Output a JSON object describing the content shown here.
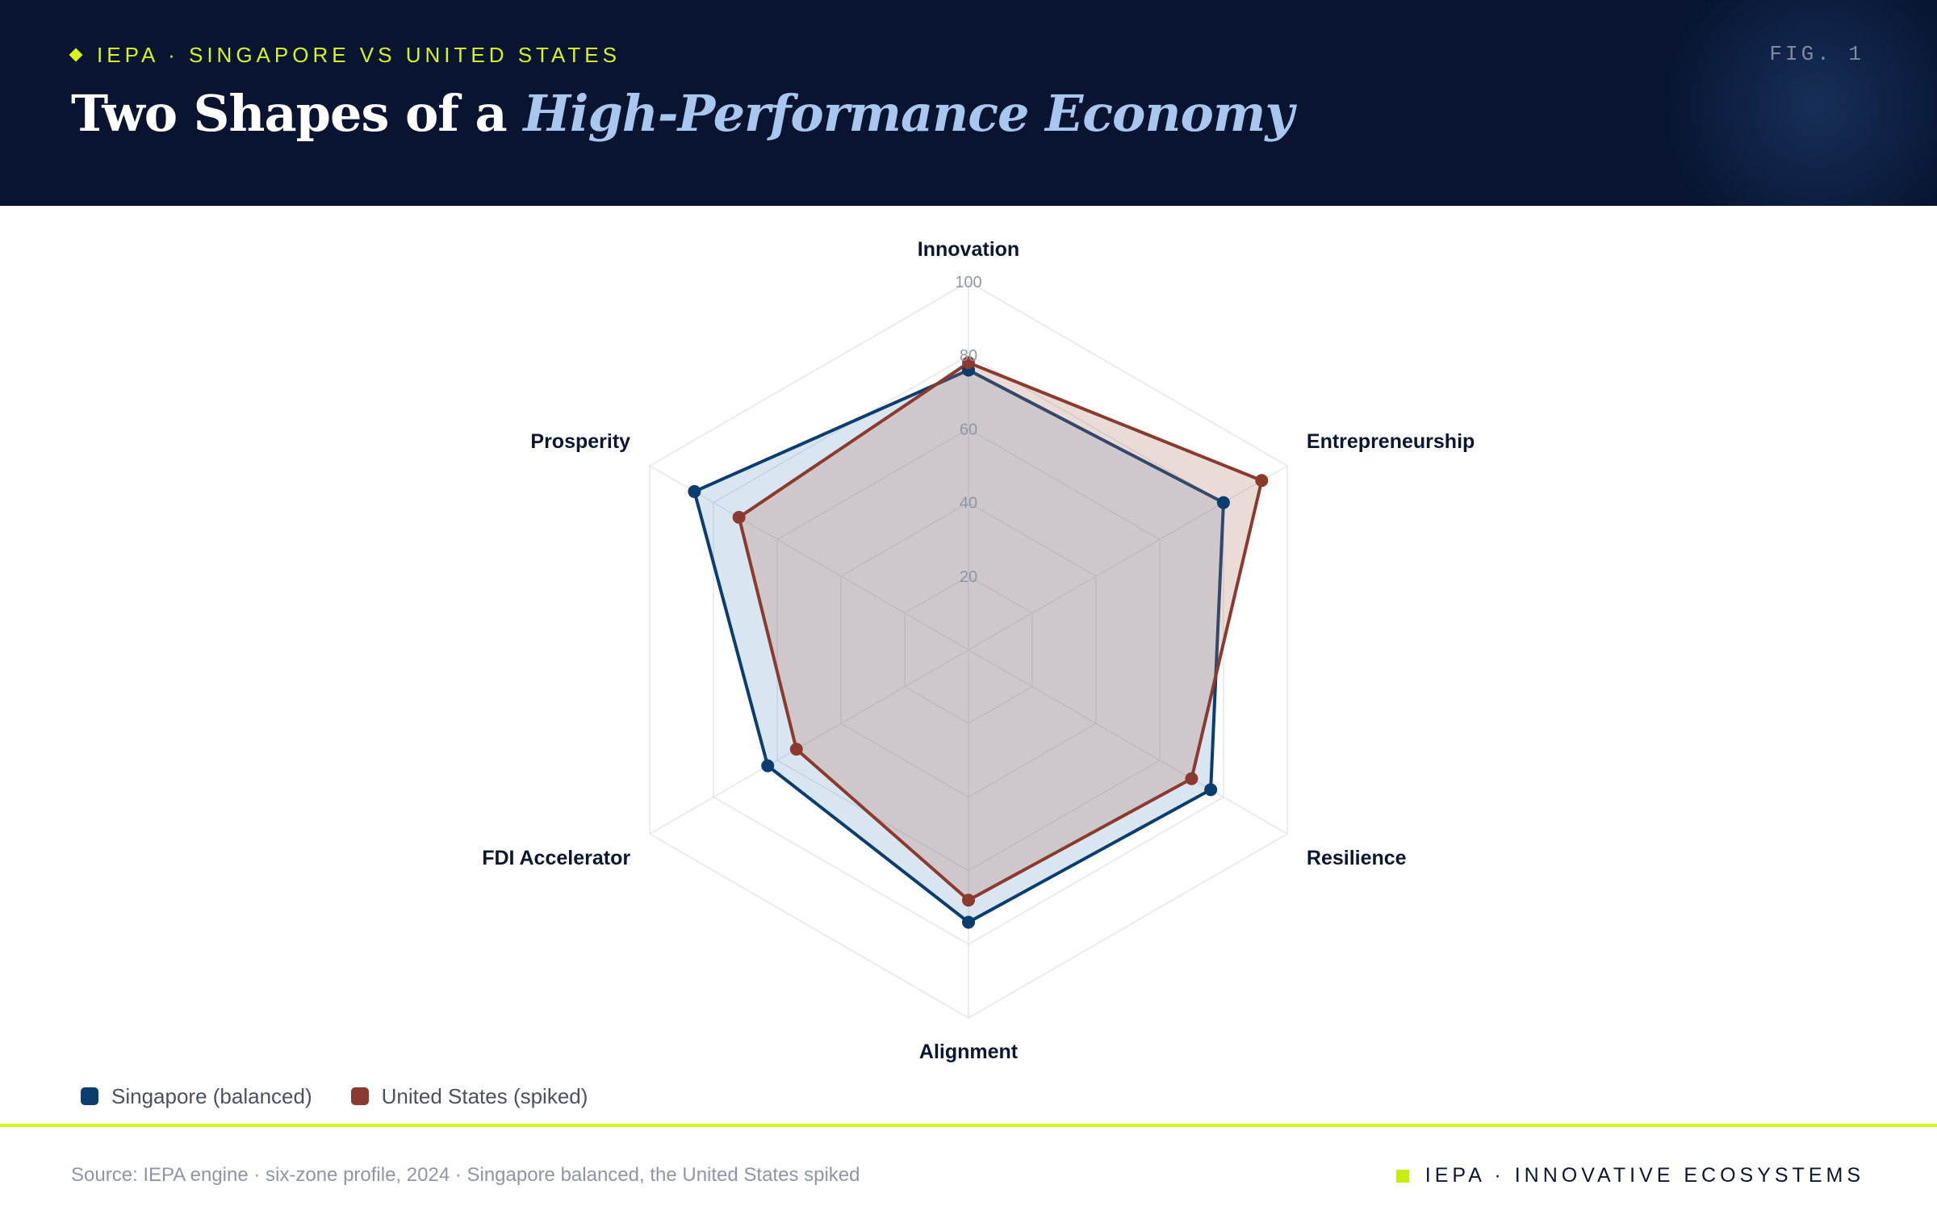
{
  "header": {
    "kicker": "IEPA · SINGAPORE VS UNITED STATES",
    "fig_label": "FIG. 1",
    "title_main": "Two Shapes of a",
    "title_accent": "High-Performance Economy"
  },
  "chart_data": {
    "type": "radar",
    "axes": [
      "Innovation",
      "Entrepreneurship",
      "Resilience",
      "Alignment",
      "FDI Accelerator",
      "Prosperity"
    ],
    "rlim": [
      0,
      100
    ],
    "ticks": [
      20,
      40,
      60,
      80,
      100
    ],
    "grid": true,
    "legend_position": "bottom-left",
    "series": [
      {
        "name": "Singapore (balanced)",
        "color": "#0b3d6e",
        "fill": "rgba(120,160,205,0.28)",
        "values": [
          76,
          80,
          76,
          74,
          63,
          86
        ]
      },
      {
        "name": "United States (spiked)",
        "color": "#8a3a2e",
        "fill": "rgba(175,110,95,0.25)",
        "values": [
          78,
          92,
          70,
          68,
          54,
          72
        ]
      }
    ]
  },
  "footer": {
    "source": "Source: IEPA engine · six-zone profile, 2024 · Singapore balanced, the United States spiked",
    "brand": "IEPA · INNOVATIVE ECOSYSTEMS"
  }
}
